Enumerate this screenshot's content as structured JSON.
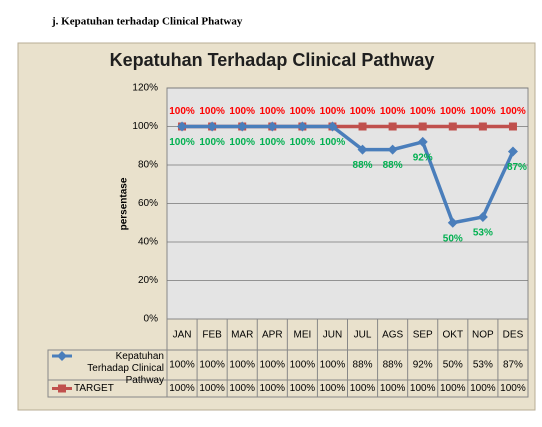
{
  "heading": "j.   Kepatuhan terhadap Clinical Phatway",
  "chart_data": {
    "type": "line",
    "title": "Kepatuhan Terhadap Clinical Pathway",
    "y_label": "persentase",
    "categories": [
      "JAN",
      "FEB",
      "MAR",
      "APR",
      "MEI",
      "JUN",
      "JUL",
      "AGS",
      "SEP",
      "OKT",
      "NOP",
      "DES"
    ],
    "series": [
      {
        "name": "Kepatuhan Terhadap Clinical Pathway",
        "color": "#4a7ebb",
        "marker": "diamond",
        "label_color": "#00b050",
        "values": [
          100,
          100,
          100,
          100,
          100,
          100,
          88,
          88,
          92,
          50,
          53,
          87
        ],
        "value_labels": [
          "100%",
          "100%",
          "100%",
          "100%",
          "100%",
          "100%",
          "88%",
          "88%",
          "92%",
          "50%",
          "53%",
          "87%"
        ]
      },
      {
        "name": "TARGET",
        "color": "#c0504d",
        "marker": "square",
        "label_color": "#ff0000",
        "values": [
          100,
          100,
          100,
          100,
          100,
          100,
          100,
          100,
          100,
          100,
          100,
          100
        ],
        "value_labels": [
          "100%",
          "100%",
          "100%",
          "100%",
          "100%",
          "100%",
          "100%",
          "100%",
          "100%",
          "100%",
          "100%",
          "100%"
        ]
      }
    ],
    "ylim": [
      0,
      120
    ],
    "yticks": [
      {
        "value": 0,
        "label": "0%"
      },
      {
        "value": 20,
        "label": "20%"
      },
      {
        "value": 40,
        "label": "40%"
      },
      {
        "value": 60,
        "label": "60%"
      },
      {
        "value": 80,
        "label": "80%"
      },
      {
        "value": 100,
        "label": "100%"
      },
      {
        "value": 120,
        "label": "120%"
      }
    ],
    "grid": true,
    "data_table": true
  }
}
